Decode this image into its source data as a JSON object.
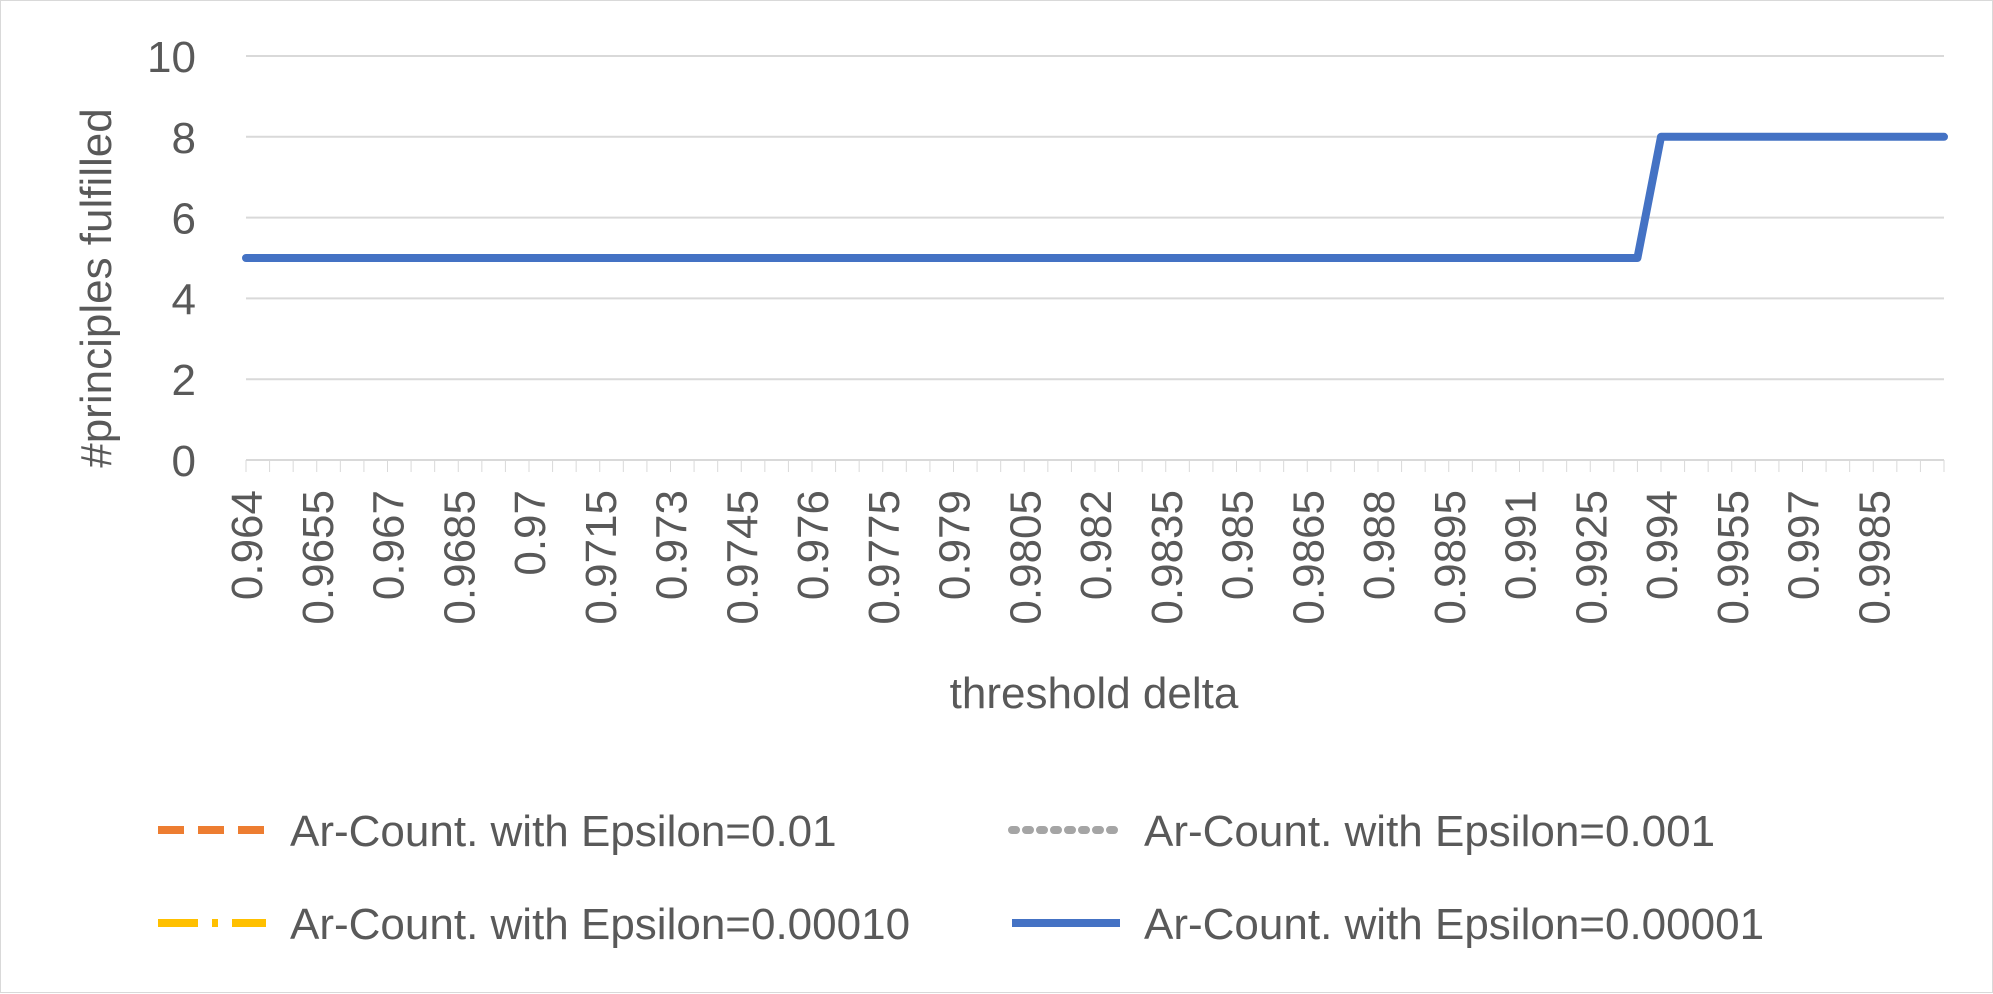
{
  "chart_data": {
    "type": "line",
    "xlabel": "threshold delta",
    "ylabel": "#principles fulfilled",
    "ylim": [
      0,
      10
    ],
    "yticks": [
      0,
      2,
      4,
      6,
      8,
      10
    ],
    "x_tick_labels": [
      "0.964",
      "0.9655",
      "0.967",
      "0.9685",
      "0.97",
      "0.9715",
      "0.973",
      "0.9745",
      "0.976",
      "0.9775",
      "0.979",
      "0.9805",
      "0.982",
      "0.9835",
      "0.985",
      "0.9865",
      "0.988",
      "0.9895",
      "0.991",
      "0.9925",
      "0.994",
      "0.9955",
      "0.997",
      "0.9985"
    ],
    "x_range": [
      0.964,
      1.0
    ],
    "x_step": 0.0005,
    "grid": "horizontal",
    "legend_position": "bottom",
    "series": [
      {
        "name": "Ar-Count. with Epsilon=0.01",
        "color": "#ED7D31",
        "style": "dashed",
        "points": []
      },
      {
        "name": "Ar-Count. with Epsilon=0.001",
        "color": "#A5A5A5",
        "style": "dotted",
        "points": []
      },
      {
        "name": "Ar-Count. with Epsilon=0.00010",
        "color": "#FFC000",
        "style": "dashdot",
        "points": []
      },
      {
        "name": "Ar-Count. with Epsilon=0.00001",
        "color": "#4472C4",
        "style": "solid",
        "points": [
          [
            0.964,
            5
          ],
          [
            0.9935,
            5
          ],
          [
            0.994,
            8
          ],
          [
            1.0,
            8
          ]
        ]
      }
    ]
  }
}
